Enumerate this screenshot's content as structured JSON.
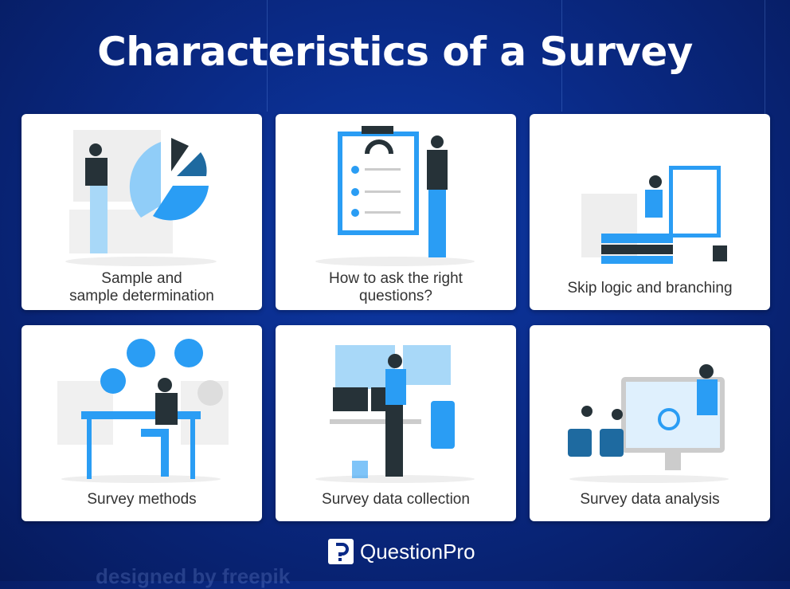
{
  "title": "Characteristics of a Survey",
  "cards": [
    {
      "label_lines": [
        "Sample and",
        "sample determination"
      ]
    },
    {
      "label_lines": [
        "How to ask the right",
        "questions?"
      ]
    },
    {
      "label_lines": [
        "Skip logic and branching"
      ]
    },
    {
      "label_lines": [
        "Survey methods"
      ]
    },
    {
      "label_lines": [
        "Survey data collection"
      ]
    },
    {
      "label_lines": [
        "Survey data analysis"
      ]
    }
  ],
  "brand": {
    "name": "QuestionPro",
    "logo_icon": "questionpro-p-icon"
  },
  "watermark": "designed by freepik",
  "colors": {
    "background": "#0a2a86",
    "accent": "#2a9df4",
    "dark": "#263238"
  }
}
